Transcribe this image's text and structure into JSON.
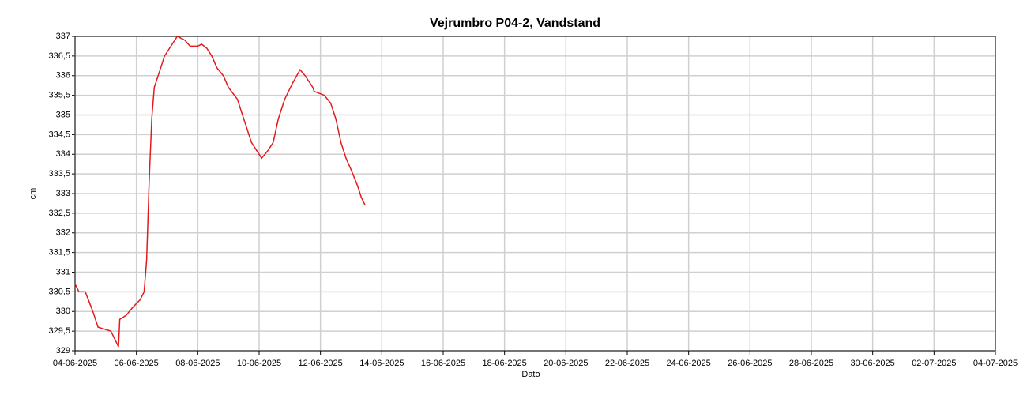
{
  "chart_data": {
    "type": "line",
    "title": "Vejrumbro P04-2, Vandstand",
    "x_label": "Dato",
    "y_label": "cm",
    "x": [
      "2025-06-04T00:00",
      "2025-06-04T03:00",
      "2025-06-04T08:00",
      "2025-06-04T11:00",
      "2025-06-04T14:00",
      "2025-06-04T18:00",
      "2025-06-05T04:00",
      "2025-06-05T07:00",
      "2025-06-05T10:00",
      "2025-06-05T11:00",
      "2025-06-05T16:00",
      "2025-06-05T21:00",
      "2025-06-06T03:00",
      "2025-06-06T06:00",
      "2025-06-06T08:00",
      "2025-06-06T10:00",
      "2025-06-06T12:00",
      "2025-06-06T14:00",
      "2025-06-06T18:00",
      "2025-06-06T22:00",
      "2025-06-07T02:00",
      "2025-06-07T08:00",
      "2025-06-07T14:00",
      "2025-06-07T18:00",
      "2025-06-08T00:00",
      "2025-06-08T03:00",
      "2025-06-08T07:00",
      "2025-06-08T11:00",
      "2025-06-08T15:00",
      "2025-06-08T20:00",
      "2025-06-09T00:00",
      "2025-06-09T07:00",
      "2025-06-09T10:00",
      "2025-06-09T14:00",
      "2025-06-09T18:00",
      "2025-06-09T22:00",
      "2025-06-10T02:00",
      "2025-06-10T07:00",
      "2025-06-10T11:00",
      "2025-06-10T15:00",
      "2025-06-10T20:00",
      "2025-06-11T02:00",
      "2025-06-11T08:00",
      "2025-06-11T12:00",
      "2025-06-11T18:00",
      "2025-06-11T19:00",
      "2025-06-12T03:00",
      "2025-06-12T08:00",
      "2025-06-12T12:00",
      "2025-06-12T16:00",
      "2025-06-12T20:00",
      "2025-06-13T00:00",
      "2025-06-13T05:00",
      "2025-06-13T08:00",
      "2025-06-13T11:00"
    ],
    "series": [
      {
        "name": "Vandstand",
        "color": "#e31a1c",
        "values": [
          330.7,
          330.5,
          330.5,
          330.25,
          329.99,
          329.6,
          329.5,
          329.3,
          329.1,
          329.8,
          329.9,
          330.1,
          330.3,
          330.5,
          331.3,
          333.3,
          334.9,
          335.7,
          336.1,
          336.5,
          336.7,
          337,
          336.9,
          336.75,
          336.75,
          336.8,
          336.7,
          336.5,
          336.2,
          336.0,
          335.7,
          335.4,
          335.1,
          334.7,
          334.3,
          334.1,
          333.9,
          334.1,
          334.3,
          334.9,
          335.4,
          335.8,
          336.15,
          336.0,
          335.7,
          335.6,
          335.5,
          335.3,
          334.9,
          334.3,
          333.9,
          333.6,
          333.2,
          332.9,
          332.7
        ]
      }
    ],
    "xlim": [
      "2025-06-04",
      "2025-07-04"
    ],
    "xticks": [
      {
        "value": "2025-06-04",
        "label": "04-06-2025"
      },
      {
        "value": "2025-06-06",
        "label": "06-06-2025"
      },
      {
        "value": "2025-06-08",
        "label": "08-06-2025"
      },
      {
        "value": "2025-06-10",
        "label": "10-06-2025"
      },
      {
        "value": "2025-06-12",
        "label": "12-06-2025"
      },
      {
        "value": "2025-06-14",
        "label": "14-06-2025"
      },
      {
        "value": "2025-06-16",
        "label": "16-06-2025"
      },
      {
        "value": "2025-06-18",
        "label": "18-06-2025"
      },
      {
        "value": "2025-06-20",
        "label": "20-06-2025"
      },
      {
        "value": "2025-06-22",
        "label": "22-06-2025"
      },
      {
        "value": "2025-06-24",
        "label": "24-06-2025"
      },
      {
        "value": "2025-06-26",
        "label": "26-06-2025"
      },
      {
        "value": "2025-06-28",
        "label": "28-06-2025"
      },
      {
        "value": "2025-06-30",
        "label": "30-06-2025"
      },
      {
        "value": "2025-07-02",
        "label": "02-07-2025"
      },
      {
        "value": "2025-07-04",
        "label": "04-07-2025"
      }
    ],
    "ylim": [
      329,
      337
    ],
    "yticks": [
      329,
      {
        "value": 329.5,
        "label": "329,5"
      },
      330,
      {
        "value": 330.5,
        "label": "330,5"
      },
      331,
      {
        "value": 331.5,
        "label": "331,5"
      },
      332,
      {
        "value": 332.5,
        "label": "332,5"
      },
      333,
      {
        "value": 333.5,
        "label": "333,5"
      },
      334,
      {
        "value": 334.5,
        "label": "334,5"
      },
      335,
      {
        "value": 335.5,
        "label": "335,5"
      },
      336,
      {
        "value": 336.5,
        "label": "336,5"
      },
      337
    ],
    "grid": true
  }
}
